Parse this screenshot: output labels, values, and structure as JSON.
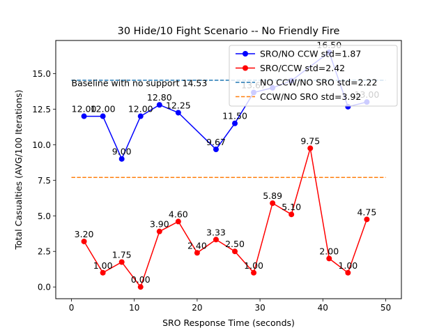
{
  "chart_data": {
    "type": "line",
    "title": "30 Hide/10 Fight Scenario -- No Friendly Fire",
    "xlabel": "SRO Response Time (seconds)",
    "ylabel": "Total Casualties (AVG/100 Iterations)",
    "xlim": [
      -2.5,
      52.5
    ],
    "ylim": [
      -0.825,
      17.325
    ],
    "xticks": [
      0,
      10,
      20,
      30,
      40,
      50
    ],
    "yticks": [
      0.0,
      2.5,
      5.0,
      7.5,
      10.0,
      12.5,
      15.0
    ],
    "ytick_labels": [
      "0.0",
      "2.5",
      "5.0",
      "7.5",
      "10.0",
      "12.5",
      "15.0"
    ],
    "grid": false,
    "legend_position": "upper right",
    "annotation": {
      "text": "Baseline with no support 14.53",
      "x": 0,
      "y": 14.3
    },
    "series": [
      {
        "name": "SRO/NO CCW  std=1.87",
        "style": "line-marker",
        "color": "#0000ff",
        "x": [
          2,
          5,
          8,
          11,
          14,
          17,
          23,
          26,
          29,
          32,
          35,
          41,
          44,
          47
        ],
        "values": [
          12.0,
          12.0,
          9.0,
          12.0,
          12.8,
          12.25,
          9.67,
          11.5,
          13.67,
          14.0,
          14.5,
          16.5,
          12.67,
          13.0
        ],
        "labels": [
          "12.00",
          "12.00",
          "9.00",
          "12.00",
          "12.80",
          "12.25",
          "9.67",
          "11.50",
          "13.67",
          "",
          "",
          "16.50",
          "",
          "13.00"
        ]
      },
      {
        "name": "SRO/CCW  std=2.42",
        "style": "line-marker",
        "color": "#ff0000",
        "x": [
          2,
          5,
          8,
          11,
          14,
          17,
          20,
          23,
          26,
          29,
          32,
          35,
          38,
          41,
          44,
          47
        ],
        "values": [
          3.2,
          1.0,
          1.75,
          0.0,
          3.9,
          4.6,
          2.4,
          3.33,
          2.5,
          1.0,
          5.89,
          5.1,
          9.75,
          2.0,
          1.0,
          4.75
        ],
        "labels": [
          "3.20",
          "1.00",
          "1.75",
          "0.00",
          "3.90",
          "4.60",
          "2.40",
          "3.33",
          "2.50",
          "1.00",
          "5.89",
          "5.10",
          "9.75",
          "2.00",
          "1.00",
          "4.75"
        ]
      },
      {
        "name": "NO CCW/NO SRO  std=2.22",
        "style": "dashed",
        "color": "#1f77b4",
        "x": [
          0,
          50
        ],
        "values": [
          14.53,
          14.53
        ]
      },
      {
        "name": "CCW/NO SRO   std=3.92",
        "style": "dashed",
        "color": "#ff7f0e",
        "x": [
          0,
          50
        ],
        "values": [
          7.7,
          7.7
        ]
      }
    ]
  }
}
